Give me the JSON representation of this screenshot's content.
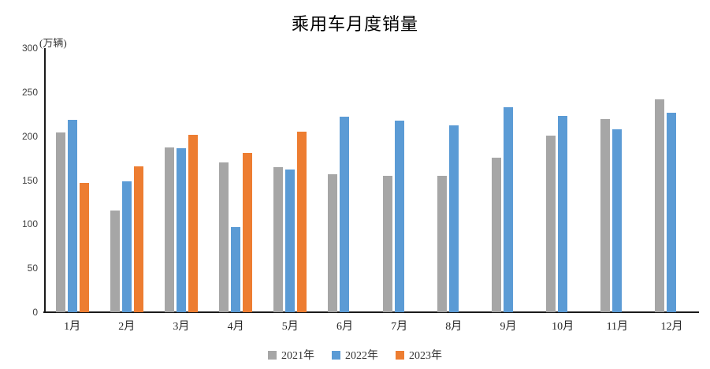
{
  "title": "乘用车月度销量",
  "unit_label": "(万辆)",
  "colors": {
    "series_2021": "#A6A6A6",
    "series_2022": "#5B9BD5",
    "series_2023": "#ED7D31",
    "axis": "#1A1A1A",
    "tick_text": "#404040"
  },
  "chart_data": {
    "type": "bar",
    "title": "乘用车月度销量",
    "unit": "(万辆)",
    "categories": [
      "1月",
      "2月",
      "3月",
      "4月",
      "5月",
      "6月",
      "7月",
      "8月",
      "9月",
      "10月",
      "11月",
      "12月"
    ],
    "series": [
      {
        "name": "2021年",
        "color": "#A6A6A6",
        "values": [
          204.5,
          115.6,
          187.4,
          170.4,
          164.6,
          156.9,
          155.1,
          155.2,
          175.1,
          200.7,
          219.2,
          242.2
        ]
      },
      {
        "name": "2022年",
        "color": "#5B9BD5",
        "values": [
          218.6,
          148.7,
          186.4,
          96.5,
          162.3,
          222.2,
          217.4,
          212.5,
          233.2,
          223.1,
          207.5,
          226.3
        ]
      },
      {
        "name": "2023年",
        "color": "#ED7D31",
        "values": [
          146.9,
          165.3,
          201.7,
          181.1,
          205.1,
          null,
          null,
          null,
          null,
          null,
          null,
          null
        ]
      }
    ],
    "ylabel": "(万辆)",
    "xlabel": "",
    "ylim": [
      0,
      300
    ],
    "yticks": [
      300,
      250,
      200,
      150,
      100,
      50,
      0
    ],
    "grid": false,
    "legend_position": "bottom"
  }
}
